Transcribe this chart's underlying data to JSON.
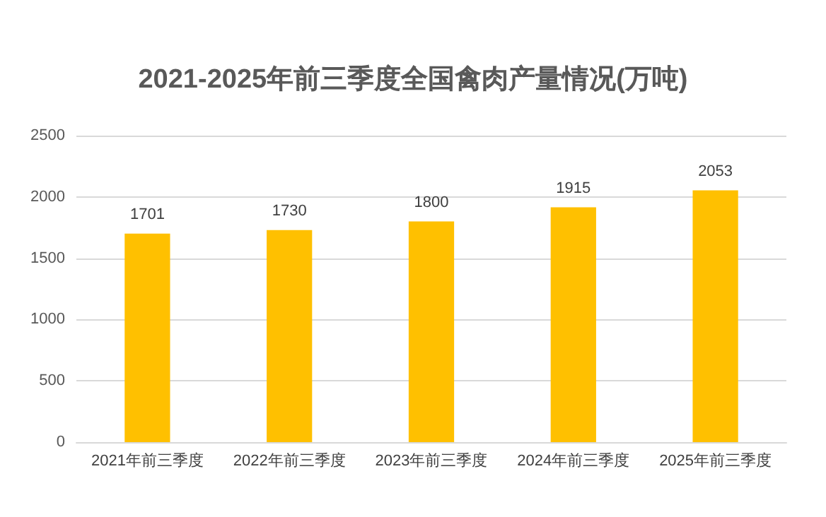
{
  "chart_data": {
    "type": "bar",
    "title": "2021-2025年前三季度全国禽肉产量情况(万吨)",
    "categories": [
      "2021年前三季度",
      "2022年前三季度",
      "2023年前三季度",
      "2024年前三季度",
      "2025年前三季度"
    ],
    "values": [
      1701,
      1730,
      1800,
      1915,
      2053
    ],
    "color": "#ffc000",
    "ylim": [
      0,
      2500
    ],
    "yticks": [
      0,
      500,
      1000,
      1500,
      2000,
      2500
    ],
    "grid": "y",
    "data_labels": true
  }
}
